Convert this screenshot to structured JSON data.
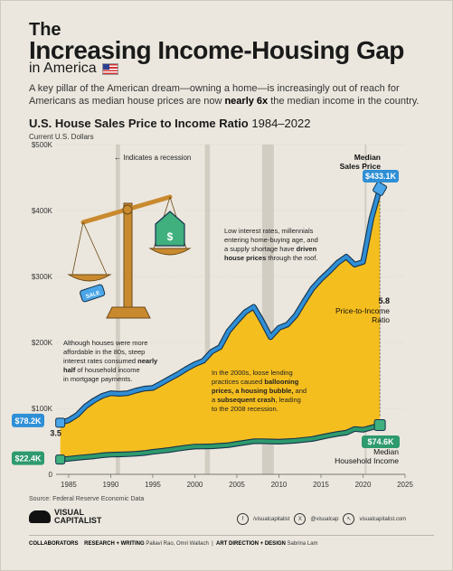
{
  "header": {
    "title_line1": "The",
    "title_line2": "Increasing Income-Housing Gap",
    "title_line3": "in America",
    "subtitle_pre": "A key pillar of the American dream—owning a home—is increasingly out of reach for Americans as median house prices are now ",
    "subtitle_bold": "nearly 6x",
    "subtitle_post": " the median income in the country."
  },
  "chart_title_bold": "U.S. House Sales Price to Income Ratio",
  "chart_title_years": "1984–2022",
  "units_label": "Current U.S. Dollars",
  "chart_data": {
    "type": "area",
    "title": "U.S. House Sales Price to Income Ratio 1984–2022",
    "ylabel": "Current U.S. Dollars",
    "x_ticks": [
      "1985",
      "1990",
      "1995",
      "2000",
      "2005",
      "2010",
      "2015",
      "2020",
      "2025"
    ],
    "y_ticks": [
      "0",
      "$100K",
      "$200K",
      "$300K",
      "$400K",
      "$500K"
    ],
    "xlim": [
      1983.5,
      2025
    ],
    "ylim": [
      0,
      500000
    ],
    "x": [
      1984,
      1985,
      1986,
      1987,
      1988,
      1989,
      1990,
      1991,
      1992,
      1993,
      1994,
      1995,
      1996,
      1997,
      1998,
      1999,
      2000,
      2001,
      2002,
      2003,
      2004,
      2005,
      2006,
      2007,
      2008,
      2009,
      2010,
      2011,
      2012,
      2013,
      2014,
      2015,
      2016,
      2017,
      2018,
      2019,
      2020,
      2021,
      2022
    ],
    "series": [
      {
        "name": "Median Sales Price",
        "color": "#2f8fd6",
        "values": [
          78200,
          82000,
          90000,
          103000,
          112000,
          119000,
          123000,
          122000,
          123000,
          127000,
          130000,
          131000,
          138000,
          145000,
          152000,
          160000,
          167000,
          172000,
          186000,
          193000,
          217000,
          232000,
          246000,
          254000,
          232000,
          208000,
          222000,
          227000,
          241000,
          262000,
          282000,
          296000,
          308000,
          321000,
          330000,
          318000,
          322000,
          388000,
          433100
        ]
      },
      {
        "name": "Median Household Income",
        "color": "#2e9a6e",
        "values": [
          22400,
          23600,
          24900,
          26100,
          27200,
          28900,
          29900,
          30100,
          30600,
          31200,
          32300,
          34100,
          35500,
          37000,
          38900,
          40700,
          42000,
          42200,
          42400,
          43300,
          44300,
          46300,
          48200,
          50200,
          50300,
          49800,
          49400,
          50100,
          51000,
          52300,
          53700,
          56500,
          59000,
          61400,
          63200,
          68700,
          67500,
          70800,
          74600
        ]
      }
    ],
    "recession_years": [
      1990.6,
      1991.1,
      2001.2,
      2001.8,
      2008.0,
      2009.4,
      2020.2,
      2020.3
    ],
    "start_labels": {
      "price": "$78.2K",
      "ratio": "3.5",
      "income": "$22.4K"
    },
    "end_labels": {
      "price_title": "Median\nSales Price",
      "price_value": "$433.1K",
      "ratio_value": "5.8",
      "ratio_title": "Price-to-Income\nRatio",
      "income_value": "$74.6K",
      "income_title": "Median\nHousehold Income"
    },
    "recession_legend": "← Indicates a recession",
    "annotations": [
      {
        "key": "eighties",
        "text": "Although houses were more\naffordable in the 80s, steep\ninterest rates consumed *nearly*\n*half* of household income\nin mortgage payments."
      },
      {
        "key": "twothousands",
        "text": "In the 2000s, loose lending\npractices caused *ballooning*\n*prices, a housing bubble,* and\na *subsequent crash*, leading\nto the 2008 recession."
      },
      {
        "key": "recent",
        "text": "Low interest rates, millennials\nentering home-buying age, and\na supply shortage have *driven*\n*house prices* through the roof."
      }
    ],
    "colors": {
      "area": "#f5be1f",
      "price_line": "#2f8fd6",
      "income_line": "#2e9a6e",
      "recession": "#d2cdc2"
    }
  },
  "icons": {
    "scale": "balance-scale-icon",
    "house_tag": "sale-tag-icon",
    "house": "house-dollar-icon"
  },
  "scale_tag": "SALE",
  "house_symbol": "$",
  "footer": {
    "source": "Source: Federal Reserve Economic Data",
    "logo_line1": "VISUAL",
    "logo_line2": "CAPITALIST",
    "social_fb": "f",
    "social_fb_handle": "/visualcapitalist",
    "social_x": "X",
    "social_x_handle": "@visualcap",
    "social_web": "visualcapitalist.com",
    "credits_label": "COLLABORATORS",
    "credits_rw_label": "RESEARCH + WRITING",
    "credits_rw": "Pallavi Rao, Omri Wallach",
    "credits_ad_label": "ART DIRECTION + DESIGN",
    "credits_ad": "Sabrina Lam"
  }
}
